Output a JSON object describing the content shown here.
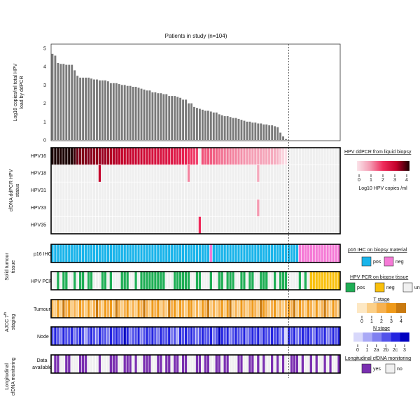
{
  "chart_data": {
    "type": "bar",
    "title": "Patients in study (n=104)",
    "ylabel_lines": [
      "Log10 copies/ml total HPV",
      "load by ddPCR"
    ],
    "ylim": [
      0,
      5
    ],
    "yticks": [
      "0",
      "1",
      "2",
      "3",
      "4",
      "5"
    ],
    "n_patients": 104,
    "total_hpv_load": [
      4.7,
      4.6,
      4.2,
      4.15,
      4.15,
      4.1,
      4.1,
      4.1,
      3.8,
      3.5,
      3.4,
      3.4,
      3.4,
      3.4,
      3.35,
      3.3,
      3.3,
      3.25,
      3.25,
      3.25,
      3.2,
      3.1,
      3.1,
      3.1,
      3.05,
      3.0,
      3.0,
      2.95,
      2.95,
      2.9,
      2.9,
      2.85,
      2.8,
      2.75,
      2.7,
      2.7,
      2.6,
      2.6,
      2.55,
      2.55,
      2.5,
      2.5,
      2.4,
      2.4,
      2.4,
      2.35,
      2.3,
      2.2,
      2.2,
      2.0,
      2.0,
      1.8,
      1.75,
      1.7,
      1.65,
      1.6,
      1.6,
      1.55,
      1.5,
      1.5,
      1.4,
      1.35,
      1.3,
      1.3,
      1.25,
      1.2,
      1.2,
      1.15,
      1.1,
      1.05,
      1.0,
      1.0,
      0.95,
      0.95,
      0.9,
      0.9,
      0.85,
      0.85,
      0.8,
      0.8,
      0.75,
      0.7,
      0.4,
      0.2,
      0.05,
      0,
      0,
      0,
      0,
      0,
      0,
      0,
      0,
      0,
      0,
      0,
      0,
      0,
      0,
      0,
      0,
      0,
      0,
      0
    ],
    "cfdna_group_label_lines": [
      "cfDNA ddPCR HPV",
      "status"
    ],
    "hpv_rows": [
      {
        "label": "HPV16",
        "source": "total_hpv_load",
        "exclude_patients": [
          54
        ]
      },
      {
        "label": "HPV18",
        "positives": [
          {
            "patient": 18,
            "value": 3.0
          },
          {
            "patient": 50,
            "value": 1.2
          },
          {
            "patient": 75,
            "value": 0.8
          }
        ]
      },
      {
        "label": "HPV31",
        "positives": []
      },
      {
        "label": "HPV33",
        "positives": [
          {
            "patient": 75,
            "value": 1.0
          }
        ]
      },
      {
        "label": "HPV35",
        "positives": [
          {
            "patient": 54,
            "value": 2.0
          }
        ]
      }
    ],
    "tissue_group_label_lines": [
      "Solid tumour",
      "tissue"
    ],
    "p16_ihc": {
      "label": "p16 IHC",
      "codes": "pppppppppppppppppppppppppppppppppppppppppppppppppppppppppnpppppppppppppppppppppppppppppppnnnnnnnnnnnnnnn"
    },
    "hpv_pcr": {
      "label": "HPV PCR",
      "codes": "uugugguuguggugguuugguguuuggguuguggggggggguuugggggguugguuuguugguggguuggugguuggguuguggguuuuguguyyyyyyyyyyy"
    },
    "staging_group_label": {
      "main": "AJCC 7",
      "sup": "th",
      "second": "staging"
    },
    "t_stage": {
      "label": "Tumour",
      "codes": "21314231213213124213231421231213242132312142313213312132412123134121321232143212312123241321321312421321"
    },
    "n_stage": {
      "label": "Node",
      "codes": "bcbacbbcabcb1bcbacbbacbcbb3cabbcabcbcbacbbcab1cbcbcbabcbbcab3cbcabcbbcabcbcacbbcbcab0cbcabcbcbacbbcabcbc"
    },
    "monitoring_group_label_lines": [
      "Longitudinal",
      "cfDNA monitoring"
    ],
    "monitoring": {
      "label_lines": [
        "Data",
        "available"
      ],
      "codes": "nyynnyynnnyyynnnnynnnyyynnyyynynnyyynnyynyynyynyynnnyynyynnyynyynnnyynnyynynynnynynynnyyynynnynynnynynny"
    },
    "cutoff_after_patient": 85
  },
  "legends": {
    "ddpcr": {
      "title": "HPV ddPCR from liquid biopsy",
      "ticks": [
        "0",
        "1",
        "2",
        "3",
        "4"
      ],
      "caption": "Log10 HPV copies /ml"
    },
    "p16": {
      "title": "p16 IHC on biopsy material",
      "items": [
        {
          "code": "p",
          "label": "pos"
        },
        {
          "code": "n",
          "label": "neg"
        }
      ]
    },
    "pcr": {
      "title": "HPV PCR on biopsy tissue",
      "items": [
        {
          "code": "g",
          "label": "pos"
        },
        {
          "code": "y",
          "label": "neg"
        },
        {
          "code": "u",
          "label": "untested"
        }
      ]
    },
    "t_stage": {
      "title": "T stage",
      "ticks": [
        "0",
        "1",
        "2",
        "3",
        "4"
      ]
    },
    "n_stage": {
      "title": "N stage",
      "ticks": [
        "0",
        "1",
        "2a",
        "2b",
        "2c",
        "3"
      ]
    },
    "monitoring": {
      "title": "Longitudinal cfDNA monitoring",
      "items": [
        {
          "code": "y",
          "label": "yes"
        },
        {
          "code": "n",
          "label": "no"
        }
      ]
    }
  },
  "colors": {
    "bar": "#7a7a7a",
    "empty": "#efefef",
    "ddpcr_scale": [
      "#fbe4ea",
      "#f49bb2",
      "#ee2a5a",
      "#c4002a",
      "#1a0000"
    ],
    "p16": {
      "p": "#1ab4ea",
      "n": "#f57ad6"
    },
    "pcr": {
      "g": "#1fae55",
      "y": "#f9c00c",
      "u": "#f0f0f0"
    },
    "t_stage": {
      "0": "#fde8c4",
      "1": "#fbcf88",
      "2": "#f6b150",
      "3": "#ef9a1a",
      "4": "#c97a10"
    },
    "n_stage": {
      "0": "#d8d8fb",
      "1": "#a9a9f6",
      "a": "#8080f0",
      "b": "#5252ea",
      "c": "#2424e0",
      "3": "#0000c0"
    },
    "monitoring": {
      "y": "#7a2fb0",
      "n": "#f0f0f0"
    }
  }
}
